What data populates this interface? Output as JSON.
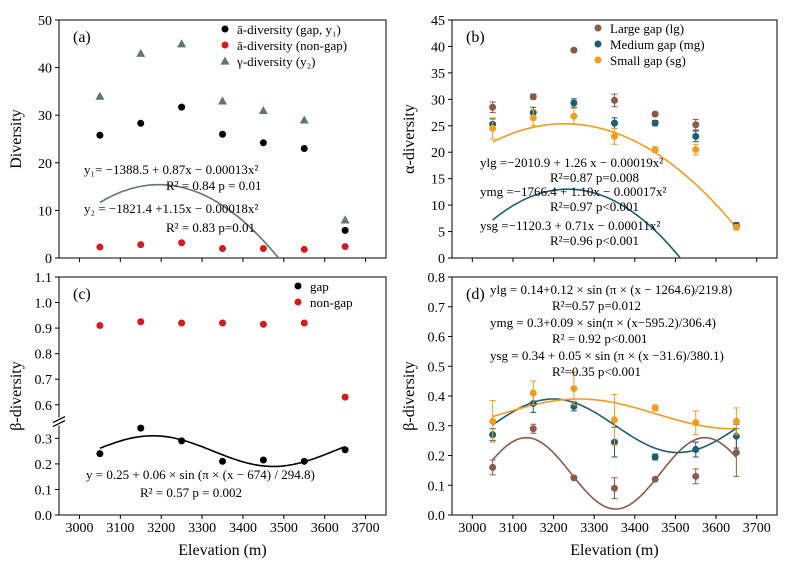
{
  "figure": {
    "shared_xlabel": "Elevation (m)"
  },
  "chart_data": [
    {
      "id": "a",
      "panel_label": "(a)",
      "type": "scatter",
      "ylabel": "Diversity",
      "ylim": [
        0,
        50
      ],
      "yticks": [
        0,
        10,
        20,
        30,
        40,
        50
      ],
      "xlim": [
        2950,
        3750
      ],
      "xticks": [
        3000,
        3100,
        3200,
        3300,
        3400,
        3500,
        3600,
        3700
      ],
      "x_ticklabels_shown": false,
      "grid": false,
      "legend": {
        "position": "top-right",
        "entries": [
          {
            "label": "ā-diversity (gap, y₁)",
            "series": "alpha_gap"
          },
          {
            "label": "ā-diversity (non-gap)",
            "series": "alpha_nongap"
          },
          {
            "label": "γ-diversity  (y₂)",
            "series": "gamma"
          }
        ]
      },
      "series": [
        {
          "key": "alpha_gap",
          "marker": "circle",
          "color": "#000000",
          "x": [
            3050,
            3150,
            3250,
            3350,
            3450,
            3550,
            3650
          ],
          "y": [
            25.8,
            28.3,
            31.7,
            26.0,
            24.2,
            23.0,
            5.8
          ]
        },
        {
          "key": "alpha_nongap",
          "marker": "circle",
          "color": "#d71920",
          "x": [
            3050,
            3150,
            3250,
            3350,
            3450,
            3550,
            3650
          ],
          "y": [
            2.3,
            2.8,
            3.2,
            2.0,
            2.0,
            1.8,
            2.4
          ]
        },
        {
          "key": "gamma",
          "marker": "triangle",
          "color": "#5f7a64",
          "x": [
            3050,
            3150,
            3250,
            3350,
            3450,
            3550,
            3650
          ],
          "y": [
            34.0,
            43.0,
            45.0,
            33.0,
            31.0,
            29.0,
            8.0
          ]
        }
      ],
      "fits": [
        {
          "series": "alpha_gap",
          "kind": "quadratic",
          "color": "#000000",
          "x_range": [
            3050,
            3655
          ],
          "coeffs": [
            -1388.5,
            0.87,
            -0.00013
          ]
        },
        {
          "series": "gamma",
          "kind": "quadratic",
          "color": "#5f7a64",
          "x_range": [
            3050,
            3655
          ],
          "coeffs": [
            -1821.4,
            1.15,
            -0.00018
          ]
        }
      ],
      "annotations": [
        "y₁= −1388.5 + 0.87x − 0.00013x²",
        "R² = 0.84    p = 0.01",
        "y₂ = −1821.4 +1.15x − 0.00018x²",
        "R² = 0.83    p=0.01"
      ]
    },
    {
      "id": "b",
      "panel_label": "(b)",
      "type": "scatter",
      "ylabel": "α-diversity",
      "ylim": [
        0,
        45
      ],
      "yticks": [
        0,
        5,
        10,
        15,
        20,
        25,
        30,
        35,
        40,
        45
      ],
      "xlim": [
        2950,
        3750
      ],
      "xticks": [
        3000,
        3100,
        3200,
        3300,
        3400,
        3500,
        3600,
        3700
      ],
      "x_ticklabels_shown": false,
      "grid": false,
      "legend": {
        "position": "top-right",
        "entries": [
          {
            "label": "Large gap (lg)",
            "series": "lg"
          },
          {
            "label": "Medium gap (mg)",
            "series": "mg"
          },
          {
            "label": "Small gap (sg)",
            "series": "sg"
          }
        ]
      },
      "series": [
        {
          "key": "lg",
          "marker": "circle",
          "color": "#8b5a4a",
          "x": [
            3050,
            3150,
            3250,
            3350,
            3450,
            3550,
            3650
          ],
          "y": [
            28.5,
            30.5,
            39.3,
            29.8,
            27.2,
            25.2,
            6.2
          ],
          "err": [
            1.0,
            0.5,
            0.3,
            1.2,
            0.3,
            1.0,
            0.5
          ]
        },
        {
          "key": "mg",
          "marker": "circle",
          "color": "#1f5d70",
          "x": [
            3050,
            3150,
            3250,
            3350,
            3450,
            3550,
            3650
          ],
          "y": [
            25.3,
            27.5,
            29.3,
            25.5,
            25.5,
            23.0,
            6.1
          ],
          "err": [
            1.0,
            1.0,
            0.8,
            1.0,
            0.5,
            1.0,
            0.5
          ]
        },
        {
          "key": "sg",
          "marker": "circle",
          "color": "#f39c1f",
          "x": [
            3050,
            3150,
            3250,
            3350,
            3450,
            3550,
            3650
          ],
          "y": [
            24.5,
            26.5,
            26.8,
            23.0,
            20.5,
            20.5,
            5.8
          ],
          "err": [
            2.0,
            1.5,
            1.5,
            1.5,
            0.5,
            1.0,
            0.5
          ]
        }
      ],
      "fits": [
        {
          "series": "lg",
          "kind": "quadratic",
          "color": "#8b5a4a",
          "x_range": [
            3050,
            3650
          ],
          "coeffs": [
            -2010.9,
            1.26,
            -0.00019
          ]
        },
        {
          "series": "mg",
          "kind": "quadratic",
          "color": "#1f5d70",
          "x_range": [
            3050,
            3650
          ],
          "coeffs": [
            -1766.4,
            1.1,
            -0.00017
          ]
        },
        {
          "series": "sg",
          "kind": "quadratic",
          "color": "#f39c1f",
          "x_range": [
            3050,
            3650
          ],
          "coeffs": [
            -1120.3,
            0.71,
            -0.00011
          ]
        }
      ],
      "annotations": [
        "ylg =−2010.9 + 1.26 x − 0.00019x²",
        "R²=0.87        p=0.008",
        "ymg =−1766.4 + 1.10x − 0.00017x²",
        "R²=0.97        p<0.001",
        "ysg =−1120.3 + 0.71x − 0.00011x²",
        "R²=0.96        p<0.001"
      ]
    },
    {
      "id": "c",
      "panel_label": "(c)",
      "type": "scatter",
      "ylabel": "β-diversity",
      "ylim": [
        0,
        1.1
      ],
      "yticks": [
        0.0,
        0.1,
        0.2,
        0.3,
        0.6,
        0.7,
        0.8,
        0.9,
        1.0,
        1.1
      ],
      "axis_break": [
        0.35,
        0.55
      ],
      "xlim": [
        2950,
        3750
      ],
      "xticks": [
        3000,
        3100,
        3200,
        3300,
        3400,
        3500,
        3600,
        3700
      ],
      "x_ticklabels_shown": true,
      "xlabel": "Elevation (m)",
      "grid": false,
      "legend": {
        "position": "top-right",
        "entries": [
          {
            "label": "gap",
            "series": "gap"
          },
          {
            "label": "non-gap",
            "series": "nongap"
          }
        ]
      },
      "series": [
        {
          "key": "gap",
          "marker": "circle",
          "color": "#000000",
          "x": [
            3050,
            3150,
            3250,
            3350,
            3450,
            3550,
            3650
          ],
          "y": [
            0.24,
            0.34,
            0.29,
            0.21,
            0.215,
            0.21,
            0.255
          ]
        },
        {
          "key": "nongap",
          "marker": "circle",
          "color": "#d71920",
          "x": [
            3050,
            3150,
            3250,
            3350,
            3450,
            3550,
            3650
          ],
          "y": [
            0.91,
            0.925,
            0.92,
            0.92,
            0.915,
            0.92,
            0.63
          ]
        }
      ],
      "fits": [
        {
          "series": "gap",
          "kind": "sine",
          "color": "#000000",
          "x_range": [
            3050,
            3650
          ],
          "params": [
            0.25,
            0.06,
            674,
            294.8
          ]
        }
      ],
      "annotations": [
        "y = 0.25 + 0.06 × sin (π × (x − 674) / 294.8)",
        "R² = 0.57        p = 0.002"
      ]
    },
    {
      "id": "d",
      "panel_label": "(d)",
      "type": "scatter",
      "ylabel": "β-diversity",
      "ylim": [
        0,
        0.8
      ],
      "yticks": [
        0.0,
        0.1,
        0.2,
        0.3,
        0.4,
        0.5,
        0.6,
        0.7,
        0.8
      ],
      "xlim": [
        2950,
        3750
      ],
      "xticks": [
        3000,
        3100,
        3200,
        3300,
        3400,
        3500,
        3600,
        3700
      ],
      "x_ticklabels_shown": true,
      "xlabel": "Elevation (m)",
      "grid": false,
      "series": [
        {
          "key": "lg",
          "marker": "circle",
          "color": "#8b5a4a",
          "x": [
            3050,
            3150,
            3250,
            3350,
            3450,
            3550,
            3650
          ],
          "y": [
            0.16,
            0.29,
            0.125,
            0.09,
            0.12,
            0.13,
            0.21
          ],
          "err": [
            0.025,
            0.015,
            0.005,
            0.035,
            0.005,
            0.025,
            0.08
          ]
        },
        {
          "key": "mg",
          "marker": "circle",
          "color": "#1f5d70",
          "x": [
            3050,
            3150,
            3250,
            3350,
            3450,
            3550,
            3650
          ],
          "y": [
            0.27,
            0.375,
            0.365,
            0.245,
            0.195,
            0.22,
            0.265
          ],
          "err": [
            0.02,
            0.03,
            0.015,
            0.05,
            0.01,
            0.025,
            0.04
          ]
        },
        {
          "key": "sg",
          "marker": "circle",
          "color": "#f39c1f",
          "x": [
            3050,
            3150,
            3250,
            3350,
            3450,
            3550,
            3650
          ],
          "y": [
            0.315,
            0.41,
            0.425,
            0.32,
            0.36,
            0.31,
            0.315
          ],
          "err": [
            0.07,
            0.04,
            0.055,
            0.085,
            0.01,
            0.04,
            0.045
          ]
        }
      ],
      "fits": [
        {
          "series": "lg",
          "kind": "sine",
          "color": "#8b5a4a",
          "x_range": [
            3050,
            3650
          ],
          "params": [
            0.14,
            0.12,
            1264.6,
            219.8
          ]
        },
        {
          "series": "mg",
          "kind": "sine",
          "color": "#1f5d70",
          "x_range": [
            3050,
            3650
          ],
          "params": [
            0.3,
            0.09,
            595.2,
            306.4
          ]
        },
        {
          "series": "sg",
          "kind": "sine",
          "color": "#f39c1f",
          "x_range": [
            3050,
            3650
          ],
          "params": [
            0.34,
            0.05,
            31.6,
            380.1
          ]
        }
      ],
      "annotations": [
        "ylg = 0.14+0.12 × sin (π × (x − 1264.6)/219.8)",
        "R²=0.57        p=0.012",
        "ymg = 0.3+0.09 × sin(π × (x−595.2)/306.4)",
        "R² = 0.92    p<0.001",
        "ysg = 0.34 + 0.05 × sin (π × (x −31.6)/380.1)",
        "R²=0.35    p<0.001"
      ]
    }
  ]
}
